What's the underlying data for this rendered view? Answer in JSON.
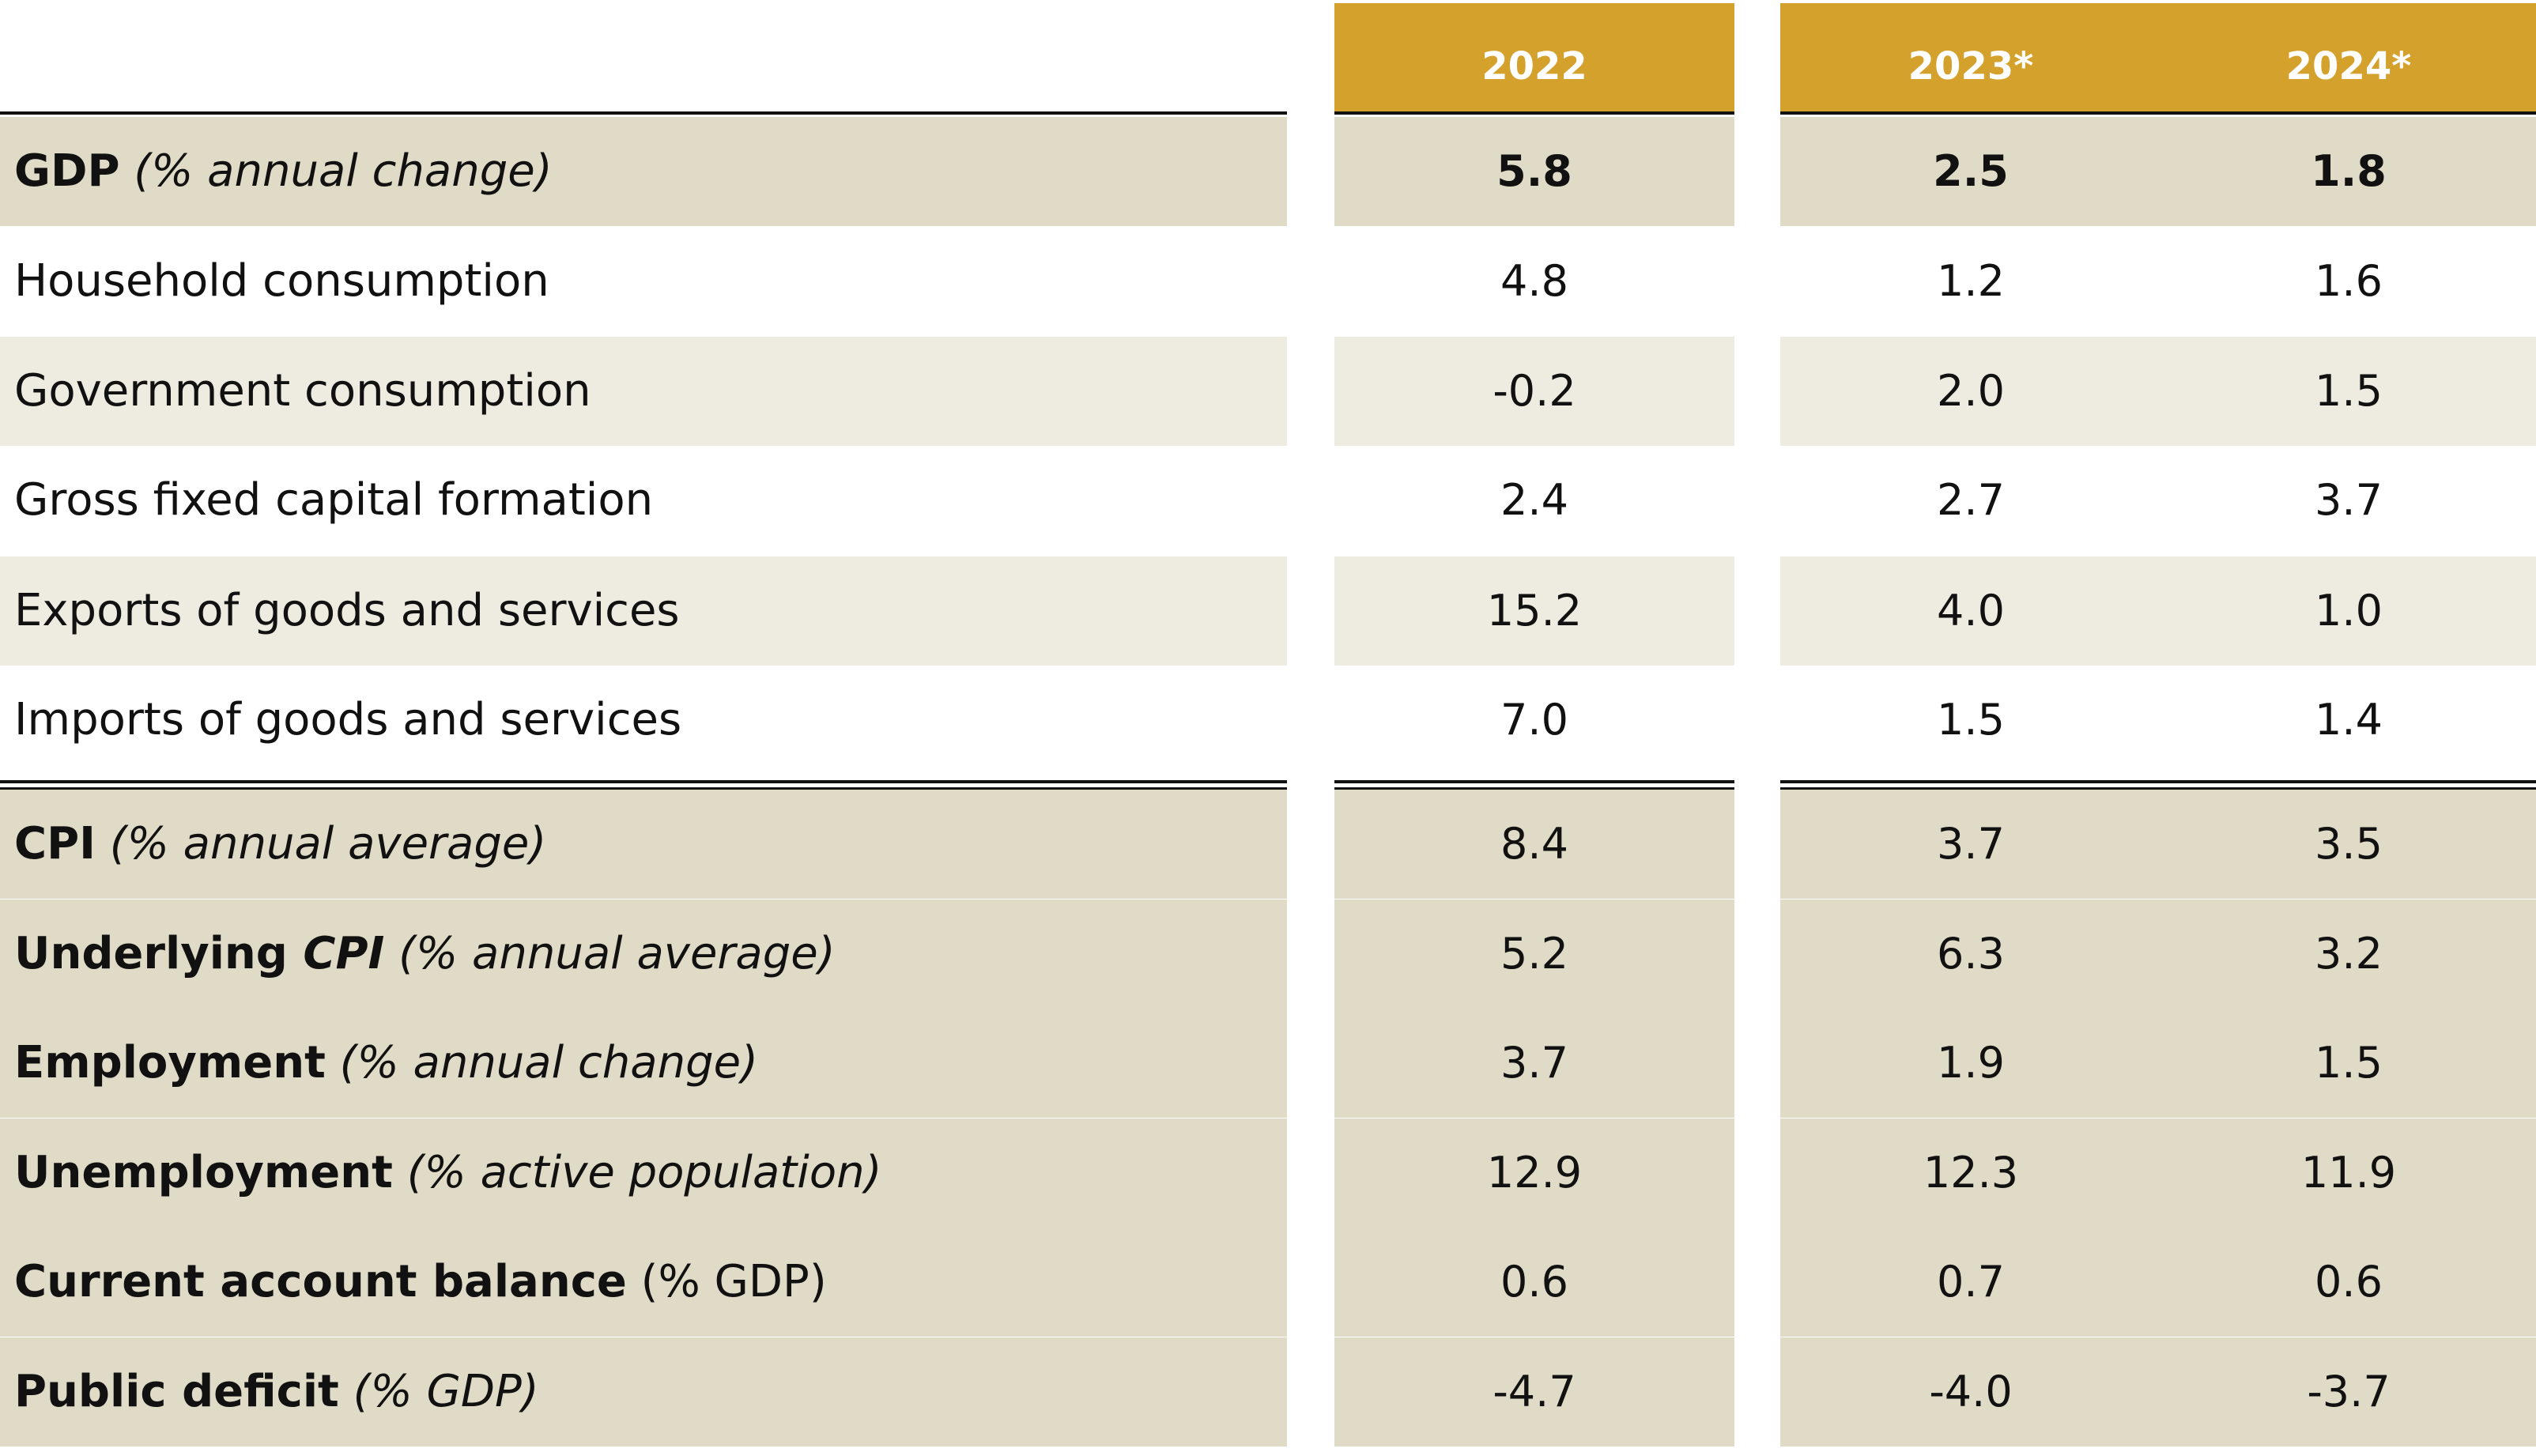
{
  "header": {
    "col_2022": "2022",
    "col_2023": "2023*",
    "col_2024": "2024*"
  },
  "rows": [
    {
      "label_bold": "GDP",
      "label_rest": " (% annual change)",
      "rest_italic": true,
      "v2022": "5.8",
      "v2023": "2.5",
      "v2024": "1.8"
    },
    {
      "label_bold": "",
      "label_rest": "Household consumption",
      "rest_italic": false,
      "v2022": "4.8",
      "v2023": "1.2",
      "v2024": "1.6"
    },
    {
      "label_bold": "",
      "label_rest": "Government consumption",
      "rest_italic": false,
      "v2022": "-0.2",
      "v2023": "2.0",
      "v2024": "1.5"
    },
    {
      "label_bold": "",
      "label_rest": "Gross fixed capital formation",
      "rest_italic": false,
      "v2022": "2.4",
      "v2023": "2.7",
      "v2024": "3.7"
    },
    {
      "label_bold": "",
      "label_rest": "Exports of goods and services",
      "rest_italic": false,
      "v2022": "15.2",
      "v2023": "4.0",
      "v2024": "1.0"
    },
    {
      "label_bold": "",
      "label_rest": "Imports of goods and services",
      "rest_italic": false,
      "v2022": "7.0",
      "v2023": "1.5",
      "v2024": "1.4"
    },
    {
      "label_bold": "CPI",
      "label_rest": " (% annual average)",
      "rest_italic": true,
      "v2022": "8.4",
      "v2023": "3.7",
      "v2024": "3.5"
    },
    {
      "label_bold": "Underlying ",
      "label_bold_italic": "CPI",
      "label_rest": " (% annual average)",
      "rest_italic": true,
      "v2022": "5.2",
      "v2023": "6.3",
      "v2024": "3.2"
    },
    {
      "label_bold": "Employment",
      "label_rest": " (% annual change)",
      "rest_italic": true,
      "v2022": "3.7",
      "v2023": "1.9",
      "v2024": "1.5"
    },
    {
      "label_bold": "Unemployment",
      "label_rest": " (% active population)",
      "rest_italic": true,
      "v2022": "12.9",
      "v2023": "12.3",
      "v2024": "11.9"
    },
    {
      "label_bold": "Current account balance",
      "label_rest": " (% GDP)",
      "rest_italic": false,
      "v2022": "0.6",
      "v2023": "0.7",
      "v2024": "0.6"
    },
    {
      "label_bold": "Public deficit",
      "label_rest": " (% GDP)",
      "rest_italic": true,
      "v2022": "-4.7",
      "v2023": "-4.0",
      "v2024": "-3.7"
    }
  ],
  "colors": {
    "header_bg": "#d5a12d",
    "row_shade_dark": "#dfdbc6",
    "row_shade_light": "#eeebe0"
  }
}
